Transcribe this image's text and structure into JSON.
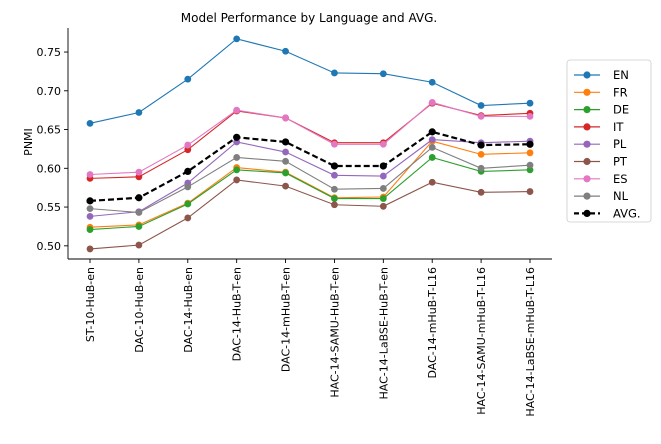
{
  "chart_data": {
    "type": "line",
    "title": "Model Performance by Language and AVG.",
    "xlabel": "",
    "ylabel": "PNMI",
    "ylim": [
      0.483,
      0.781
    ],
    "yticks": [
      0.5,
      0.55,
      0.6,
      0.65,
      0.7,
      0.75
    ],
    "ytick_labels": [
      "0.50",
      "0.55",
      "0.60",
      "0.65",
      "0.70",
      "0.75"
    ],
    "grid": false,
    "legend_position": "right",
    "categories": [
      "ST-10-HuB-en",
      "DAC-10-HuB-en",
      "DAC-14-HuB-en",
      "DAC-14-HuB-T-en",
      "DAC-14-mHuB-T-en",
      "HAC-14-SAMU-HuB-T-en",
      "HAC-14-LaBSE-HuB-T-en",
      "DAC-14-mHuB-T-L16",
      "HAC-14-SAMU-mHuB-T-L16",
      "HAC-14-LaBSE-mHuB-T-L16"
    ],
    "series": [
      {
        "name": "EN",
        "color": "#1f77b4",
        "style": "solid",
        "values": [
          0.658,
          0.672,
          0.715,
          0.767,
          0.751,
          0.723,
          0.722,
          0.711,
          0.681,
          0.684
        ]
      },
      {
        "name": "FR",
        "color": "#ff7f0e",
        "style": "solid",
        "values": [
          0.524,
          0.527,
          0.555,
          0.601,
          0.595,
          0.562,
          0.563,
          0.635,
          0.618,
          0.62
        ]
      },
      {
        "name": "DE",
        "color": "#2ca02c",
        "style": "solid",
        "values": [
          0.521,
          0.525,
          0.554,
          0.598,
          0.594,
          0.561,
          0.561,
          0.614,
          0.596,
          0.598
        ]
      },
      {
        "name": "IT",
        "color": "#d62728",
        "style": "solid",
        "values": [
          0.587,
          0.589,
          0.624,
          0.674,
          0.665,
          0.633,
          0.633,
          0.684,
          0.668,
          0.671
        ]
      },
      {
        "name": "PL",
        "color": "#9467bd",
        "style": "solid",
        "values": [
          0.538,
          0.544,
          0.581,
          0.634,
          0.621,
          0.591,
          0.59,
          0.637,
          0.633,
          0.635
        ]
      },
      {
        "name": "PT",
        "color": "#8c564b",
        "style": "solid",
        "values": [
          0.496,
          0.501,
          0.536,
          0.585,
          0.577,
          0.553,
          0.551,
          0.582,
          0.569,
          0.57
        ]
      },
      {
        "name": "ES",
        "color": "#e377c2",
        "style": "solid",
        "values": [
          0.592,
          0.595,
          0.63,
          0.675,
          0.665,
          0.631,
          0.631,
          0.685,
          0.667,
          0.667
        ]
      },
      {
        "name": "NL",
        "color": "#7f7f7f",
        "style": "solid",
        "values": [
          0.548,
          0.543,
          0.576,
          0.614,
          0.609,
          0.573,
          0.574,
          0.627,
          0.6,
          0.604
        ]
      },
      {
        "name": "AVG.",
        "color": "#000000",
        "style": "dashed",
        "values": [
          0.558,
          0.562,
          0.596,
          0.64,
          0.634,
          0.603,
          0.603,
          0.647,
          0.63,
          0.631
        ]
      }
    ]
  }
}
